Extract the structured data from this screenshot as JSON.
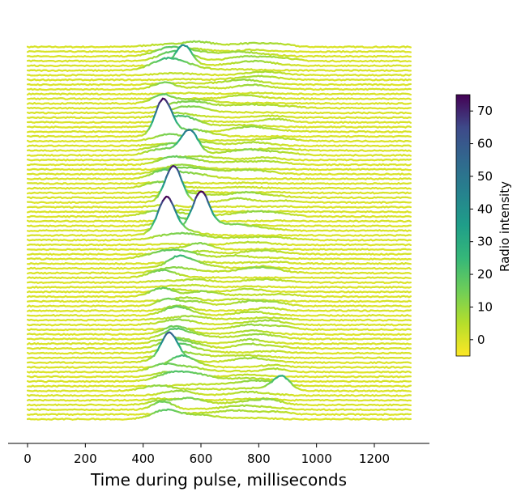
{
  "chart_data": {
    "type": "line",
    "xlabel": "Time during pulse, milliseconds",
    "xlim": [
      -70,
      1400
    ],
    "x_ticks": [
      "0",
      "200",
      "400",
      "600",
      "800",
      "1000",
      "1200"
    ],
    "x_tick_values": [
      0,
      200,
      400,
      600,
      800,
      1000,
      1200
    ],
    "x_range": [
      0,
      1330
    ],
    "n_traces": 80,
    "grid": false,
    "colorbar": {
      "label": "Radio intensity",
      "ticks": [
        "0",
        "10",
        "20",
        "30",
        "40",
        "50",
        "60",
        "70"
      ],
      "tick_values": [
        0,
        10,
        20,
        30,
        40,
        50,
        60,
        70
      ],
      "range": [
        -5,
        75
      ],
      "colormap": "viridis",
      "color_low": "#fde725",
      "color_high": "#440154"
    },
    "pulses": [
      {
        "center": 490,
        "width": 45,
        "strength": 0.35
      },
      {
        "center": 570,
        "width": 55,
        "strength": 0.25
      },
      {
        "center": 750,
        "width": 60,
        "strength": 0.2
      },
      {
        "center": 850,
        "width": 50,
        "strength": 0.12
      }
    ],
    "notable_peaks": [
      {
        "trace": 4,
        "x": 540,
        "intensity": 40
      },
      {
        "trace": 19,
        "x": 470,
        "intensity": 72
      },
      {
        "trace": 23,
        "x": 560,
        "intensity": 45
      },
      {
        "trace": 33,
        "x": 505,
        "intensity": 72
      },
      {
        "trace": 39,
        "x": 600,
        "intensity": 68
      },
      {
        "trace": 40,
        "x": 480,
        "intensity": 62
      },
      {
        "trace": 67,
        "x": 490,
        "intensity": 50
      },
      {
        "trace": 73,
        "x": 880,
        "intensity": 25
      }
    ]
  }
}
